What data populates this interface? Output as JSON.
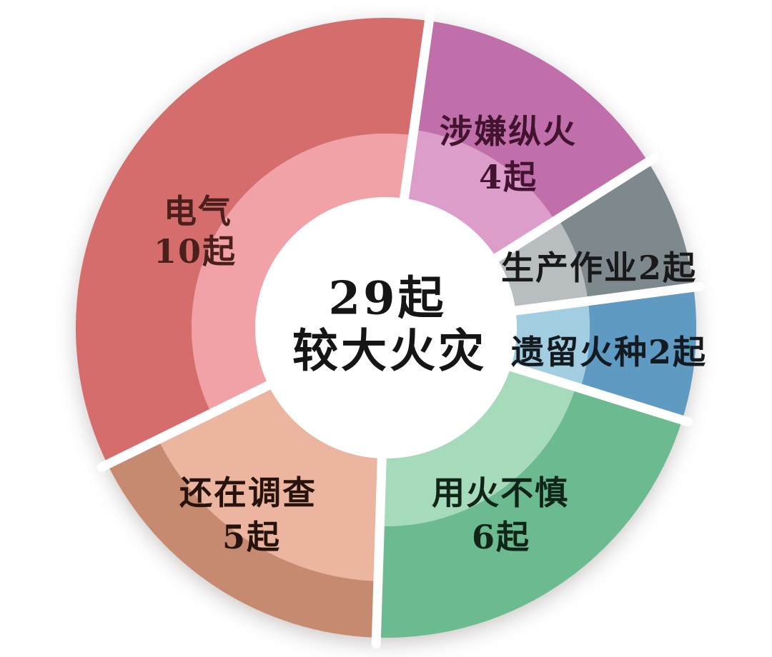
{
  "page": {
    "background_color": "#ffffff"
  },
  "chart_data": {
    "type": "pie",
    "subtype": "double-ring-donut",
    "title": "29起较大火灾",
    "total": 29,
    "unit": "起",
    "legend_position": "none",
    "separator_color": "#ffffff",
    "start_angle_deg": 8,
    "clockwise": true,
    "center_label": {
      "line1": "29起",
      "line2": "较大火灾",
      "color": "#151515"
    },
    "slices": [
      {
        "name": "涉嫌纵火",
        "value": 4,
        "label_lines": [
          "涉嫌纵火",
          "4起"
        ],
        "color_outer": "#c06fab",
        "color_inner": "#dd9dcb",
        "label_color": "#431430"
      },
      {
        "name": "生产作业",
        "value": 2,
        "label_lines": [
          "生产作业2起"
        ],
        "color_outer": "#7e898d",
        "color_inner": "#b8bdbf",
        "label_color": "#191919"
      },
      {
        "name": "遗留火种",
        "value": 2,
        "label_lines": [
          "遗留火种2起"
        ],
        "color_outer": "#5f9ac3",
        "color_inner": "#a3cee2",
        "label_color": "#131a20"
      },
      {
        "name": "用火不慎",
        "value": 6,
        "label_lines": [
          "用火不慎",
          "6起"
        ],
        "color_outer": "#6cba90",
        "color_inner": "#a5dabb",
        "label_color": "#112418"
      },
      {
        "name": "还在调查",
        "value": 5,
        "label_lines": [
          "还在调查",
          "5起"
        ],
        "color_outer": "#c58a70",
        "color_inner": "#ecb59f",
        "label_color": "#27130e"
      },
      {
        "name": "电气",
        "value": 10,
        "label_lines": [
          "电气",
          "10起"
        ],
        "color_outer": "#d66d6d",
        "color_inner": "#f0a2a6",
        "label_color": "#4b201c"
      }
    ]
  }
}
